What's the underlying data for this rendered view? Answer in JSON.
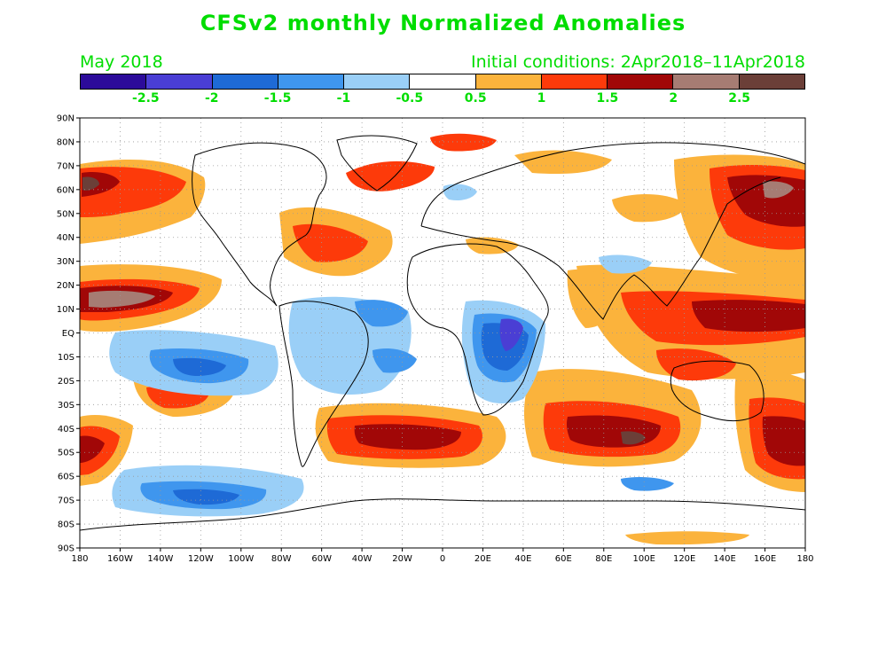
{
  "title": "CFSv2 monthly Normalized Anomalies",
  "month_label": "May 2018",
  "initial_conditions": "Initial conditions: 2Apr2018–11Apr2018",
  "colorbar": {
    "colors": [
      "#2c0b9a",
      "#4a3ed4",
      "#1e6ad6",
      "#3f96ee",
      "#9acff7",
      "#ffffff",
      "#fbb33c",
      "#fd3a0a",
      "#a10707",
      "#a67c73",
      "#6b3f38"
    ],
    "labels": [
      "-2.5",
      "-2",
      "-1.5",
      "-1",
      "-0.5",
      "0.5",
      "1",
      "1.5",
      "2",
      "2.5"
    ]
  },
  "map": {
    "lat_labels": [
      "90N",
      "80N",
      "70N",
      "60N",
      "50N",
      "40N",
      "30N",
      "20N",
      "10N",
      "EQ",
      "10S",
      "20S",
      "30S",
      "40S",
      "50S",
      "60S",
      "70S",
      "80S",
      "90S"
    ],
    "lon_labels": [
      "180",
      "160W",
      "140W",
      "120W",
      "100W",
      "80W",
      "60W",
      "40W",
      "20W",
      "0",
      "20E",
      "40E",
      "60E",
      "80E",
      "100E",
      "120E",
      "140E",
      "160E",
      "180"
    ]
  }
}
